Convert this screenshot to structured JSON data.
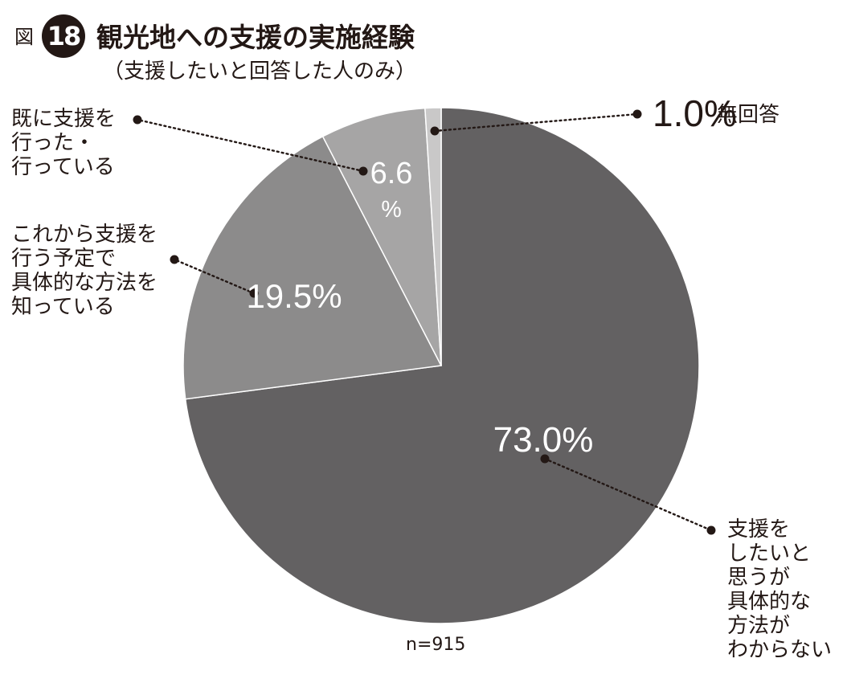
{
  "figure": {
    "prefix": "図",
    "number": "18",
    "title": "観光地への支援の実施経験",
    "subtitle": "（支援したいと回答した人のみ）"
  },
  "colors": {
    "text": "#231815",
    "slice_dark": "#636162",
    "slice_mid": "#8c8b8b",
    "slice_light": "#a6a5a5",
    "slice_lightest": "#c9c8c8"
  },
  "chart_data": {
    "type": "pie",
    "title": "観光地への支援の実施経験",
    "subtitle": "（支援したいと回答した人のみ）",
    "start_angle_deg": 0,
    "direction": "clockwise",
    "slices": [
      {
        "label": [
          "支援を",
          "したいと",
          "思うが",
          "具体的な",
          "方法が",
          "わからない"
        ],
        "value": 73.0,
        "value_label": "73.0%",
        "color": "#636162"
      },
      {
        "label": [
          "これから支援を",
          "行う予定で",
          "具体的な方法を",
          "知っている"
        ],
        "value": 19.5,
        "value_label": "19.5%",
        "color": "#8c8b8b"
      },
      {
        "label": [
          "既に支援を",
          "行った・",
          "行っている"
        ],
        "value": 6.6,
        "value_label": [
          "6.6",
          "%"
        ],
        "color": "#a6a5a5"
      },
      {
        "label": [
          "無回答"
        ],
        "value": 1.0,
        "value_label": "1.0%",
        "color": "#c9c8c8"
      }
    ],
    "note": "n=915"
  }
}
